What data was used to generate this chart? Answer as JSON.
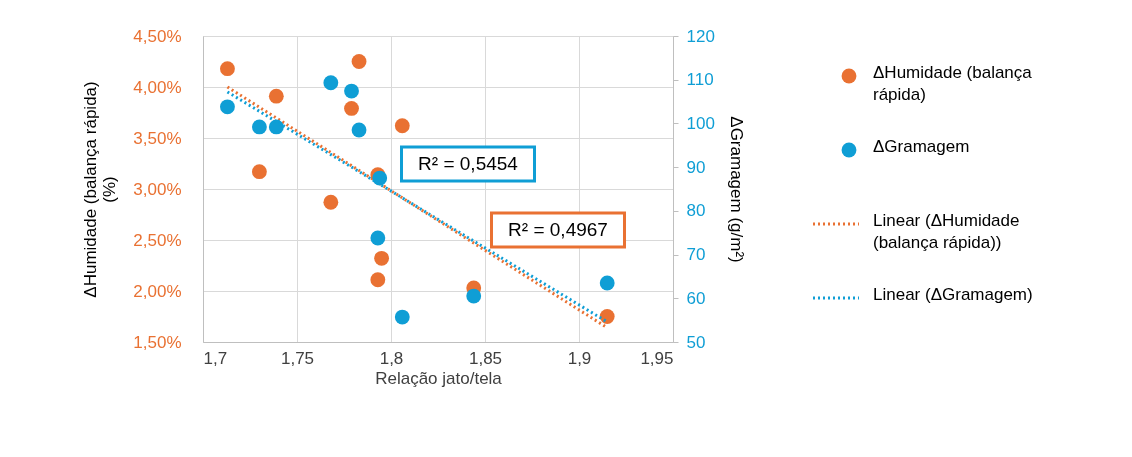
{
  "chart_data": {
    "type": "scatter",
    "xlabel": "Relação jato/tela",
    "ylabel": "ΔHumidade (balança rápida) (%)",
    "y2label": "ΔGramagem (g/m²)",
    "xlim": [
      1.7,
      1.95
    ],
    "xticks": [
      {
        "value": 1.7,
        "label": "1,7"
      },
      {
        "value": 1.75,
        "label": "1,75"
      },
      {
        "value": 1.8,
        "label": "1,8"
      },
      {
        "value": 1.85,
        "label": "1,85"
      },
      {
        "value": 1.9,
        "label": "1,9"
      },
      {
        "value": 1.95,
        "label": "1,95"
      }
    ],
    "ylim": [
      1.5,
      4.5
    ],
    "yticks": [
      {
        "value": 1.5,
        "label": "1,50%"
      },
      {
        "value": 2.0,
        "label": "2,00%"
      },
      {
        "value": 2.5,
        "label": "2,50%"
      },
      {
        "value": 3.0,
        "label": "3,00%"
      },
      {
        "value": 3.5,
        "label": "3,50%"
      },
      {
        "value": 4.0,
        "label": "4,00%"
      },
      {
        "value": 4.5,
        "label": "4,50%"
      }
    ],
    "y2lim": [
      50,
      120
    ],
    "y2ticks": [
      50,
      60,
      70,
      80,
      90,
      100,
      110,
      120
    ],
    "grid": true,
    "legend": "right",
    "marker": "circle",
    "series": [
      {
        "name": "ΔHumidade (balança rápida)",
        "color": "#e97132",
        "x": [
          1.713,
          1.739,
          1.73,
          1.768,
          1.783,
          1.779,
          1.806,
          1.793,
          1.795,
          1.793,
          1.844,
          1.915
        ],
        "values": [
          4.18,
          3.91,
          3.17,
          2.87,
          4.25,
          3.79,
          3.62,
          3.14,
          2.32,
          2.11,
          2.03,
          1.75
        ]
      },
      {
        "name": "ΔGramagem",
        "axis": "y2",
        "color": "#0f9ed5",
        "x": [
          1.713,
          1.73,
          1.739,
          1.768,
          1.779,
          1.783,
          1.794,
          1.793,
          1.806,
          1.844,
          1.915
        ],
        "values": [
          103.8,
          99.2,
          99.2,
          109.3,
          107.4,
          98.5,
          87.5,
          73.8,
          55.7,
          60.5,
          63.5
        ]
      },
      {
        "name": "Linear (ΔHumidade (balança rápida))",
        "type": "line",
        "marker": "none",
        "line_style": "dotted",
        "color": "#e97132",
        "x": [
          1.713,
          1.915
        ],
        "values": [
          4.0,
          1.64
        ]
      },
      {
        "name": "Linear (ΔGramagem)",
        "type": "line",
        "axis": "y2",
        "marker": "none",
        "line_style": "dotted",
        "color": "#0f9ed5",
        "x": [
          1.713,
          1.915
        ],
        "values": [
          107.2,
          54.6
        ]
      }
    ],
    "annotations": [
      "R² = 0,5454",
      "R² = 0,4967"
    ]
  }
}
